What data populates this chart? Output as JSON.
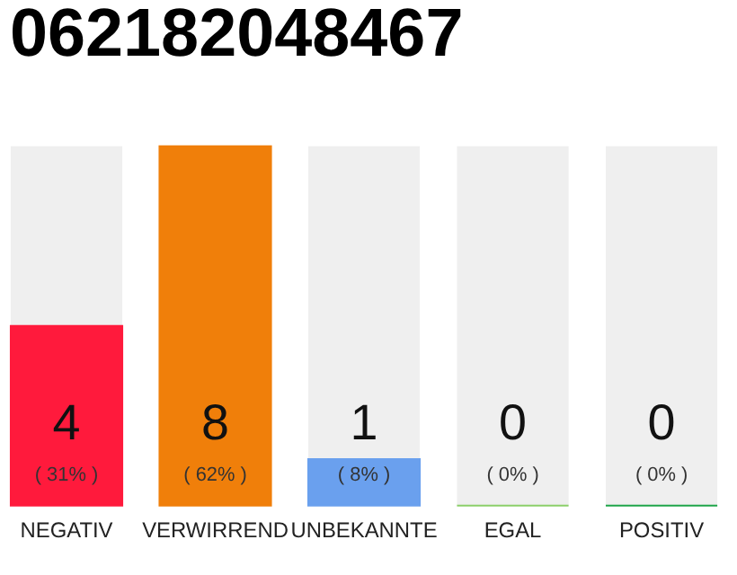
{
  "chart_data": {
    "type": "bar",
    "title": "062182048467",
    "categories": [
      "NEGATIV",
      "VERWIRREND",
      "UNBEKANNTE",
      "EGAL",
      "POSITIV"
    ],
    "values": [
      31,
      62,
      8,
      0,
      0
    ],
    "colors": [
      "#ff1a3c",
      "#f07f0a",
      "#6aa0ee",
      "#8ccf6a",
      "#1fa54a"
    ],
    "value_labels": [
      "( 31% )",
      "( 62% )",
      "( 8% )",
      "( 0% )",
      "( 0% )"
    ],
    "annotations": [
      "4",
      "8",
      "1",
      "0",
      "0"
    ]
  }
}
